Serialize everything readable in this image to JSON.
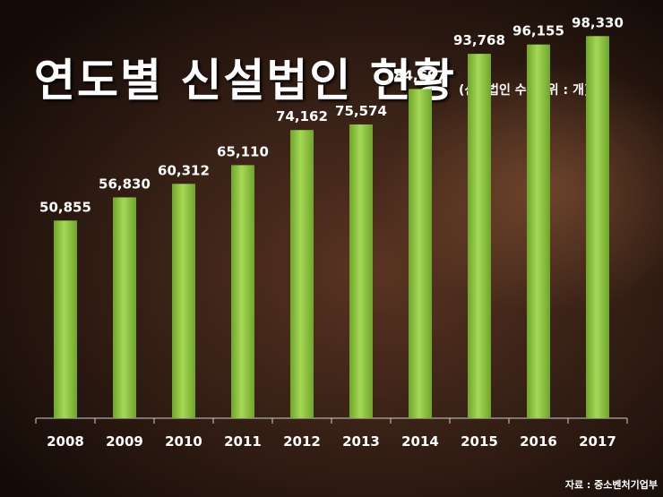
{
  "header": {
    "title": "연도별 신설법인 현황",
    "subtitle": "(신설법인 수, 단위 : 개)"
  },
  "footer": {
    "source": "자료 : 중소벤처기업부"
  },
  "colors": {
    "bar": "#8dc63f",
    "bar_light": "#b4e06a",
    "bar_dark": "#5d8f22",
    "text": "#ffffff"
  },
  "chart_data": {
    "type": "bar",
    "title": "연도별 신설법인 현황",
    "subtitle": "(신설법인 수, 단위 : 개)",
    "xlabel": "",
    "ylabel": "",
    "categories": [
      "2008",
      "2009",
      "2010",
      "2011",
      "2012",
      "2013",
      "2014",
      "2015",
      "2016",
      "2017"
    ],
    "values": [
      50855,
      56830,
      60312,
      65110,
      74162,
      75574,
      84697,
      93768,
      96155,
      98330
    ],
    "value_labels": [
      "50,855",
      "56,830",
      "60,312",
      "65,110",
      "74,162",
      "75,574",
      "84,697",
      "93,768",
      "96,155",
      "98,330"
    ],
    "ylim": [
      0,
      103000
    ],
    "grid": false,
    "legend": "none"
  }
}
